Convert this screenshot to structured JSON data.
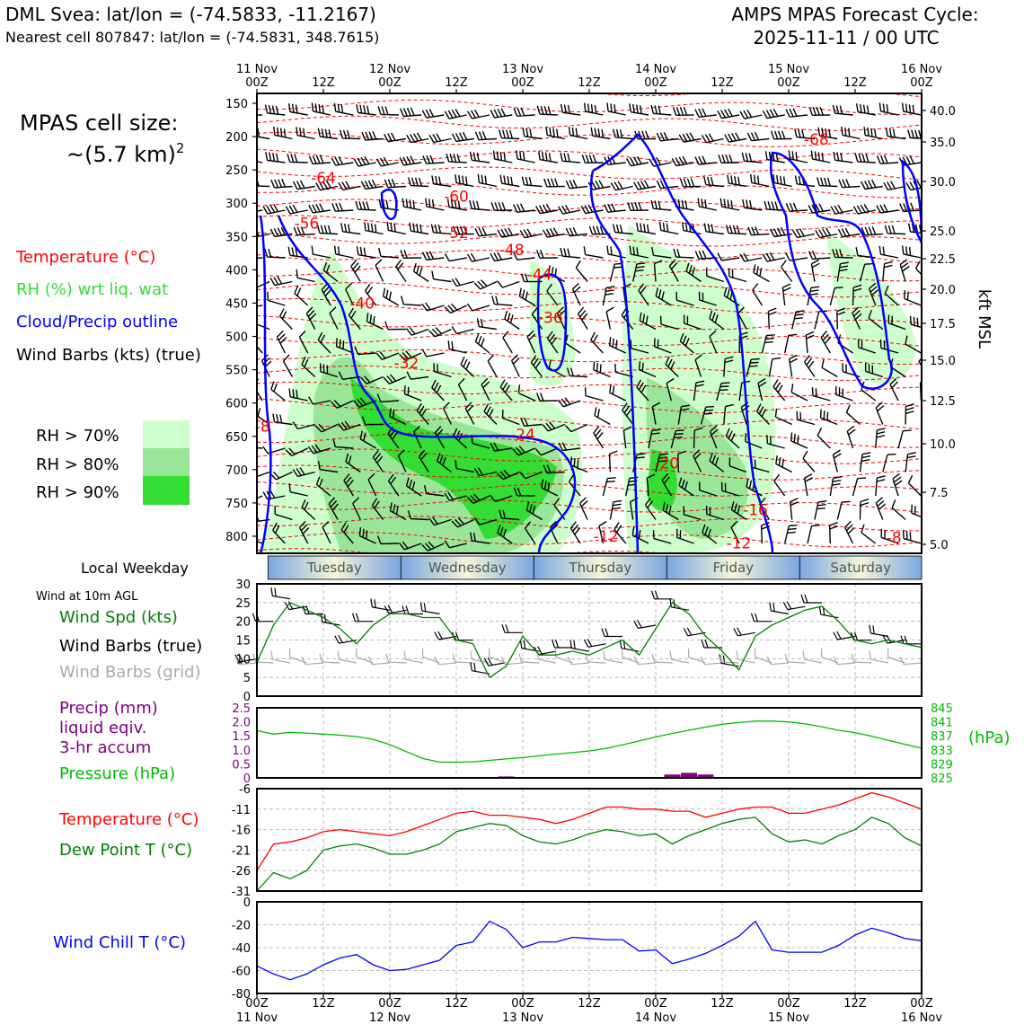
{
  "header": {
    "title_left": "DML Svea: lat/lon = (-74.5833, -11.2167)",
    "subtitle_left": "Nearest cell 807847: lat/lon = (-74.5831, 348.7615)",
    "title_right_1": "AMPS MPAS Forecast Cycle:",
    "title_right_2": "2025-11-11 / 00 UTC"
  },
  "side_text": {
    "cell_size_1": "MPAS cell size:",
    "cell_size_2": "~(5.7 km)",
    "cell_size_sup": "2",
    "leg_temp": "Temperature (°C)",
    "leg_rh": "RH (%) wrt liq. wat",
    "leg_cloud": "Cloud/Precip outline",
    "leg_wind": "Wind Barbs (kts) (true)",
    "rh70": "RH > 70%",
    "rh80": "RH > 80%",
    "rh90": "RH > 90%",
    "local_weekday": "Local Weekday",
    "wind_10m": "Wind at 10m AGL",
    "p1_spd": "Wind Spd (kts)",
    "p1_barbs_true": "Wind Barbs (true)",
    "p1_barbs_grid": "Wind Barbs (grid)",
    "p2_precip_1": "Precip (mm)",
    "p2_precip_2": "liquid eqiv.",
    "p2_precip_3": "3-hr accum",
    "p2_pressure": "Pressure (hPa)",
    "p2_hpa": "(hPa)",
    "p3_temp": "Temperature (°C)",
    "p3_dew": "Dew Point T (°C)",
    "p4_chill": "Wind Chill T (°C)",
    "kft_label": "kft MSL"
  },
  "colors": {
    "temp": "#ff0000",
    "rh70": "#ccffcc",
    "rh80": "#99e699",
    "rh90": "#33dd33",
    "cloud": "#0000ff",
    "spd": "#008000",
    "grid_barb": "#aaaaaa",
    "precip": "#800080",
    "pressure": "#00bb00",
    "dew": "#008000",
    "chill": "#0000ff"
  },
  "chart_data": [
    {
      "type": "heatmap",
      "title": "Vertical cross-section",
      "x_top_ticks": [
        {
          "l1": "11 Nov",
          "l2": "00Z",
          "h": 0
        },
        {
          "l1": "",
          "l2": "12Z",
          "h": 12
        },
        {
          "l1": "12 Nov",
          "l2": "00Z",
          "h": 24
        },
        {
          "l1": "",
          "l2": "12Z",
          "h": 36
        },
        {
          "l1": "13 Nov",
          "l2": "00Z",
          "h": 48
        },
        {
          "l1": "",
          "l2": "12Z",
          "h": 60
        },
        {
          "l1": "14 Nov",
          "l2": "00Z",
          "h": 72
        },
        {
          "l1": "",
          "l2": "12Z",
          "h": 84
        },
        {
          "l1": "15 Nov",
          "l2": "00Z",
          "h": 96
        },
        {
          "l1": "",
          "l2": "12Z",
          "h": 108
        },
        {
          "l1": "16 Nov",
          "l2": "00Z",
          "h": 120
        }
      ],
      "y_pressure_ticks": [
        "150",
        "200",
        "250",
        "300",
        "350",
        "400",
        "450",
        "500",
        "550",
        "600",
        "650",
        "700",
        "750",
        "800"
      ],
      "y_kft_ticks": [
        "40.0",
        "35.0",
        "30.0",
        "25.0",
        "22.5",
        "20.0",
        "17.5",
        "15.0",
        "12.5",
        "10.0",
        "7.5",
        "5.0"
      ],
      "ylim_hpa": [
        140,
        825
      ],
      "isotherm_labels": [
        {
          "text": "-64",
          "h": 12,
          "p": 270
        },
        {
          "text": "-60",
          "h": 36,
          "p": 298
        },
        {
          "text": "-56",
          "h": 9,
          "p": 338
        },
        {
          "text": "-52",
          "h": 36,
          "p": 352
        },
        {
          "text": "-48",
          "h": 46,
          "p": 378
        },
        {
          "text": "-44",
          "h": 51,
          "p": 415
        },
        {
          "text": "-40",
          "h": 19,
          "p": 458
        },
        {
          "text": "-36",
          "h": 53,
          "p": 480
        },
        {
          "text": "-32",
          "h": 27,
          "p": 548
        },
        {
          "text": "-24",
          "h": 48,
          "p": 655
        },
        {
          "text": "-20",
          "h": 74,
          "p": 698
        },
        {
          "text": "-16",
          "h": 90,
          "p": 768
        },
        {
          "text": "-12",
          "h": 63,
          "p": 808
        },
        {
          "text": "-12",
          "h": 87,
          "p": 818
        },
        {
          "text": "-8",
          "h": 1,
          "p": 643
        },
        {
          "text": "-8",
          "h": 115,
          "p": 810
        },
        {
          "text": "-68",
          "h": 101,
          "p": 212
        }
      ],
      "weekdays": [
        "Tuesday",
        "Wednesday",
        "Thursday",
        "Friday",
        "Saturday"
      ]
    },
    {
      "type": "line",
      "title": "Wind Spd (kts)",
      "ylim": [
        0,
        30
      ],
      "yticks": [
        "0",
        "5",
        "10",
        "15",
        "20",
        "25",
        "30"
      ],
      "x_hours": [
        0,
        3,
        6,
        9,
        12,
        15,
        18,
        21,
        24,
        27,
        30,
        33,
        36,
        39,
        42,
        45,
        48,
        51,
        54,
        57,
        60,
        63,
        66,
        69,
        72,
        75,
        78,
        81,
        84,
        87,
        90,
        93,
        96,
        99,
        102,
        105,
        108,
        111,
        114,
        117,
        120
      ],
      "series": [
        {
          "name": "Wind Spd",
          "values": [
            9,
            19,
            25,
            23,
            21,
            18,
            14,
            19,
            22,
            22,
            21,
            21,
            15,
            14,
            5,
            8,
            16,
            11,
            11,
            12,
            11,
            13,
            15,
            11,
            18,
            25,
            22,
            16,
            12,
            7,
            16,
            19,
            21,
            23,
            24,
            20,
            15,
            14,
            15,
            14,
            13
          ]
        }
      ]
    },
    {
      "type": "line",
      "title": "Pressure (hPa)",
      "ylim": [
        825,
        845
      ],
      "yticks_right": [
        "845",
        "841",
        "837",
        "833",
        "829",
        "825"
      ],
      "precip_yticks": [
        "2.5",
        "2.0",
        "1.5",
        "1.0",
        "0.5",
        "0"
      ],
      "x_hours": [
        0,
        3,
        6,
        9,
        12,
        15,
        18,
        21,
        24,
        27,
        30,
        33,
        36,
        39,
        42,
        45,
        48,
        51,
        54,
        57,
        60,
        63,
        66,
        69,
        72,
        75,
        78,
        81,
        84,
        87,
        90,
        93,
        96,
        99,
        102,
        105,
        108,
        111,
        114,
        117,
        120
      ],
      "series": [
        {
          "name": "Pressure",
          "values": [
            838.5,
            837.5,
            838,
            837.8,
            837.5,
            837.2,
            836.8,
            836,
            834.5,
            832.5,
            830.5,
            829.5,
            829.5,
            829.6,
            830,
            830.4,
            830.8,
            831.3,
            831.8,
            832.2,
            832.7,
            833.4,
            834.4,
            835.5,
            836.7,
            837.7,
            838.6,
            839.5,
            840.3,
            840.8,
            841.2,
            841.2,
            841,
            840.4,
            839.6,
            838.6,
            837.9,
            836.9,
            835.7,
            834.6,
            833.5
          ]
        },
        {
          "name": "Precip",
          "values": [
            0,
            0,
            0,
            0,
            0,
            0,
            0,
            0,
            0,
            0,
            0,
            0,
            0,
            0,
            0,
            0.05,
            0,
            0,
            0,
            0,
            0,
            0,
            0,
            0,
            0,
            0.12,
            0.18,
            0.12,
            0,
            0,
            0,
            0,
            0,
            0,
            0,
            0,
            0,
            0,
            0,
            0,
            0
          ]
        }
      ]
    },
    {
      "type": "line",
      "title": "Temperature / Dew Point (°C)",
      "ylim": [
        -31,
        -6
      ],
      "yticks": [
        "-6",
        "-11",
        "-16",
        "-21",
        "-26",
        "-31"
      ],
      "x_hours": [
        0,
        3,
        6,
        9,
        12,
        15,
        18,
        21,
        24,
        27,
        30,
        33,
        36,
        39,
        42,
        45,
        48,
        51,
        54,
        57,
        60,
        63,
        66,
        69,
        72,
        75,
        78,
        81,
        84,
        87,
        90,
        93,
        96,
        99,
        102,
        105,
        108,
        111,
        114,
        117,
        120
      ],
      "series": [
        {
          "name": "Temperature",
          "values": [
            -26,
            -19.5,
            -19,
            -18,
            -16.5,
            -16,
            -16.5,
            -17,
            -17.5,
            -16.5,
            -15,
            -13.5,
            -12,
            -11.5,
            -12.5,
            -12.5,
            -13,
            -13.5,
            -14.5,
            -13.5,
            -12,
            -10.5,
            -10.5,
            -11,
            -11,
            -11.5,
            -11.5,
            -13,
            -12,
            -11,
            -10.5,
            -10.5,
            -12,
            -12,
            -11,
            -10,
            -8.5,
            -7,
            -8,
            -9.5,
            -11
          ]
        },
        {
          "name": "Dew Point",
          "values": [
            -31,
            -26.5,
            -28,
            -26,
            -21,
            -20,
            -19.5,
            -20.5,
            -22,
            -22,
            -21,
            -19.5,
            -16.5,
            -15.5,
            -14.5,
            -15,
            -17.5,
            -19,
            -19.5,
            -18.5,
            -17,
            -16,
            -16.5,
            -17.5,
            -17,
            -19.5,
            -17.5,
            -16,
            -14.5,
            -13.5,
            -13,
            -17,
            -19,
            -18.5,
            -19.5,
            -17.5,
            -16,
            -13,
            -14.5,
            -18,
            -20
          ]
        }
      ]
    },
    {
      "type": "line",
      "title": "Wind Chill T (°C)",
      "ylim": [
        -80,
        0
      ],
      "yticks": [
        "0",
        "-20",
        "-40",
        "-60",
        "-80"
      ],
      "x_hours": [
        0,
        3,
        6,
        9,
        12,
        15,
        18,
        21,
        24,
        27,
        30,
        33,
        36,
        39,
        42,
        45,
        48,
        51,
        54,
        57,
        60,
        63,
        66,
        69,
        72,
        75,
        78,
        81,
        84,
        87,
        90,
        93,
        96,
        99,
        102,
        105,
        108,
        111,
        114,
        117,
        120
      ],
      "series": [
        {
          "name": "Wind Chill",
          "values": [
            -56,
            -63,
            -68,
            -63,
            -55,
            -49,
            -46,
            -55,
            -60,
            -59,
            -55,
            -51,
            -38,
            -35,
            -17,
            -24,
            -40,
            -35,
            -35,
            -31,
            -32,
            -33,
            -33,
            -43,
            -42,
            -54,
            -50,
            -45,
            -38,
            -30,
            -17,
            -42,
            -44,
            -44,
            -44,
            -38,
            -29,
            -23,
            -27,
            -32,
            -34
          ]
        }
      ]
    },
    {
      "type": "line",
      "title": "Bottom time axis",
      "x_bottom_ticks": [
        {
          "l1": "00Z",
          "l2": "11 Nov",
          "h": 0
        },
        {
          "l1": "12Z",
          "l2": "",
          "h": 12
        },
        {
          "l1": "00Z",
          "l2": "12 Nov",
          "h": 24
        },
        {
          "l1": "12Z",
          "l2": "",
          "h": 36
        },
        {
          "l1": "00Z",
          "l2": "13 Nov",
          "h": 48
        },
        {
          "l1": "12Z",
          "l2": "",
          "h": 60
        },
        {
          "l1": "00Z",
          "l2": "14 Nov",
          "h": 72
        },
        {
          "l1": "12Z",
          "l2": "",
          "h": 84
        },
        {
          "l1": "00Z",
          "l2": "15 Nov",
          "h": 96
        },
        {
          "l1": "12Z",
          "l2": "",
          "h": 108
        },
        {
          "l1": "00Z",
          "l2": "16 Nov",
          "h": 120
        }
      ]
    }
  ]
}
